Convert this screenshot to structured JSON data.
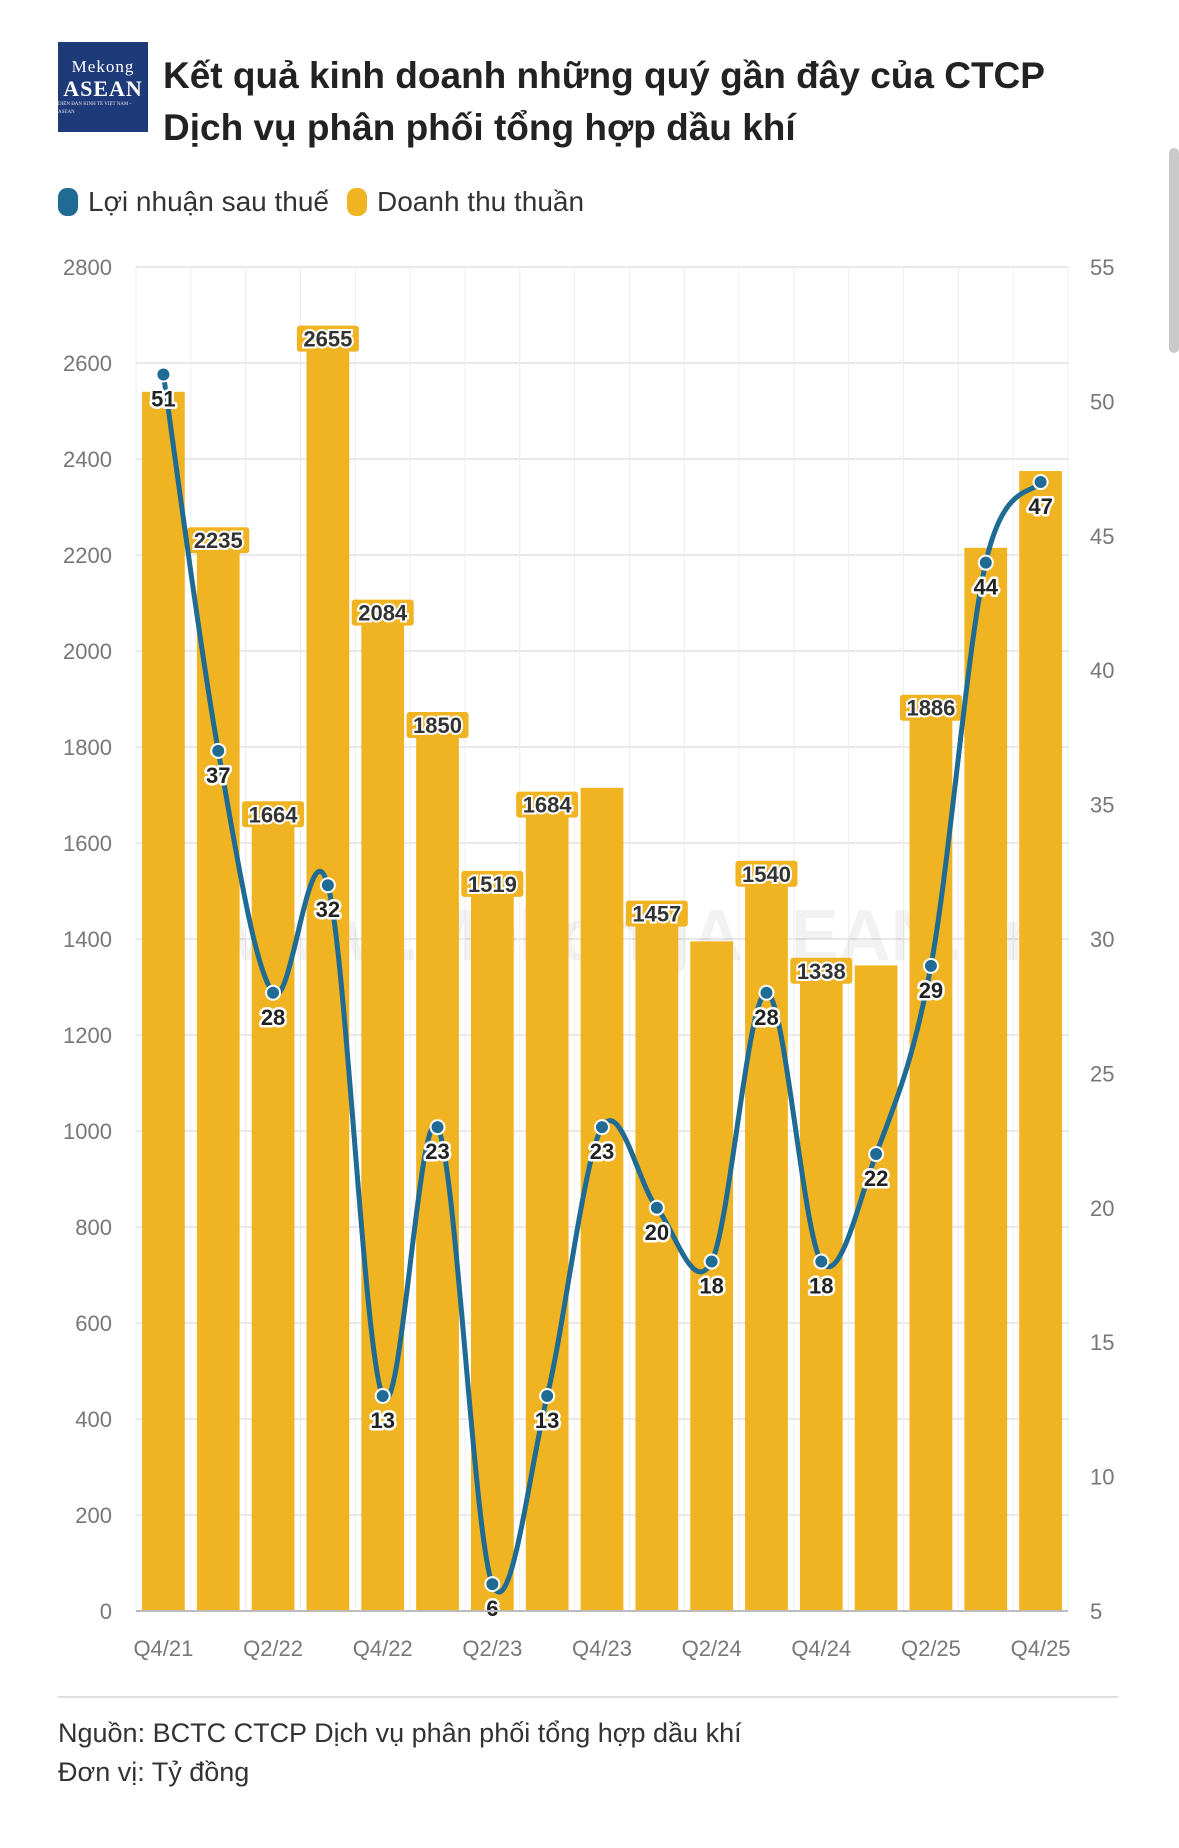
{
  "logo": {
    "line1": "Mekong",
    "line2": "ASEAN",
    "line3": "DIỄN ĐÀN KINH TẾ VIỆT NAM - ASEAN"
  },
  "title": "Kết quả kinh doanh những quý gần đây của CTCP Dịch vụ phân phối tổng hợp dầu khí",
  "legend": [
    {
      "label": "Lợi nhuận sau thuế",
      "color": "#1f6b94"
    },
    {
      "label": "Doanh thu thuần",
      "color": "#f0b423"
    }
  ],
  "footer": {
    "source": "Nguồn: BCTC CTCP Dịch vụ phân phối tổng hợp dầu khí",
    "unit": "Đơn vị: Tỷ đồng"
  },
  "chart_data": {
    "type": "bar+line",
    "categories": [
      "Q4/21",
      "Q1/22",
      "Q2/22",
      "Q3/22",
      "Q4/22",
      "Q1/23",
      "Q2/23",
      "Q3/23",
      "Q4/23",
      "Q1/24",
      "Q2/24",
      "Q3/24",
      "Q4/24",
      "Q1/25",
      "Q2/25",
      "Q3/25",
      "Q4/25"
    ],
    "x_tick_labels": [
      "Q4/21",
      "",
      "Q2/22",
      "",
      "Q4/22",
      "",
      "Q2/23",
      "",
      "Q4/23",
      "",
      "Q2/24",
      "",
      "Q4/24",
      "",
      "Q2/25",
      "",
      "Q4/25"
    ],
    "series": [
      {
        "name": "Doanh thu thuần",
        "type": "bar",
        "axis": "left",
        "color": "#f0b423",
        "values": [
          2540,
          2235,
          1664,
          2655,
          2084,
          1850,
          1519,
          1684,
          1715,
          1457,
          1395,
          1540,
          1338,
          1345,
          1886,
          2215,
          2375
        ],
        "labels": [
          "",
          "2235",
          "1664",
          "2655",
          "2084",
          "1850",
          "1519",
          "1684",
          "",
          "1457",
          "",
          "1540",
          "1338",
          "",
          "1886",
          "",
          ""
        ]
      },
      {
        "name": "Lợi nhuận sau thuế",
        "type": "line",
        "axis": "right",
        "color": "#1f6b94",
        "values": [
          51,
          37,
          28,
          32,
          13,
          23,
          6,
          13,
          23,
          20,
          18,
          28,
          18,
          22,
          29,
          44,
          47
        ],
        "labels": [
          "51",
          "37",
          "28",
          "32",
          "13",
          "23",
          "6",
          "13",
          "23",
          "20",
          "18",
          "28",
          "18",
          "22",
          "29",
          "44",
          "47"
        ]
      }
    ],
    "y_left": {
      "min": 0,
      "max": 2800,
      "ticks": [
        0,
        200,
        400,
        600,
        800,
        1000,
        1200,
        1400,
        1600,
        1800,
        2000,
        2200,
        2400,
        2600,
        2800
      ]
    },
    "y_right": {
      "min": 5,
      "max": 55,
      "ticks": [
        5,
        10,
        15,
        20,
        25,
        30,
        35,
        40,
        45,
        50,
        55
      ]
    },
    "grid": true,
    "legend_position": "top-left",
    "watermark": "www.MekongASEAN.vn"
  }
}
